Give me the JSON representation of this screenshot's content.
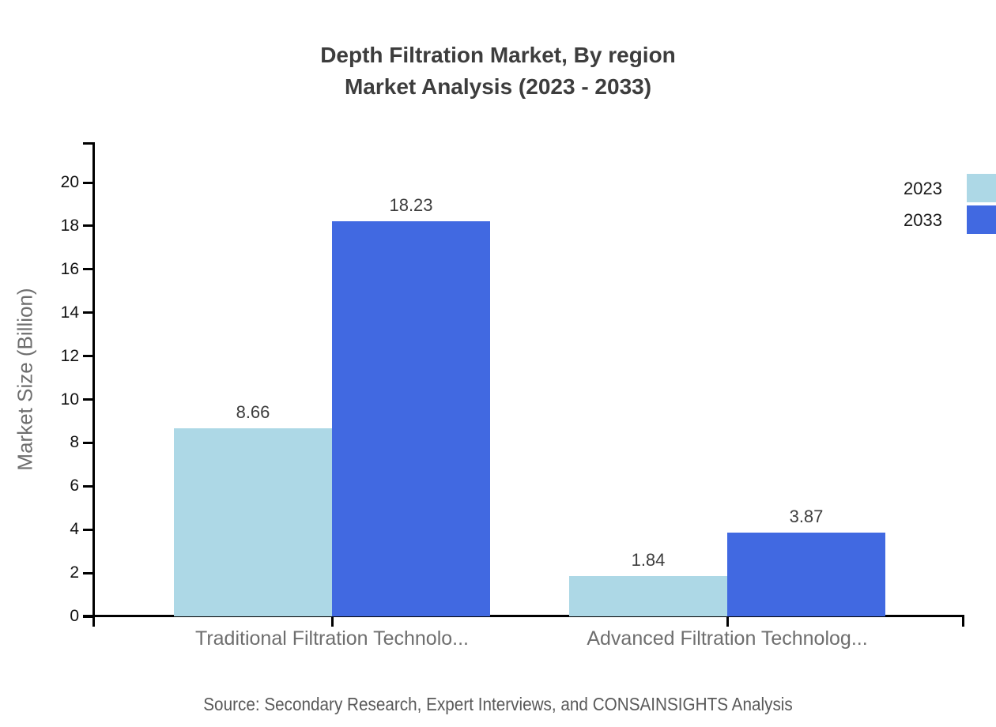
{
  "chart_data": {
    "type": "bar",
    "title": "Depth Filtration Market, By region",
    "subtitle": "Market Analysis (2023 - 2033)",
    "categories": [
      "Traditional Filtration Technolo...",
      "Advanced Filtration Technolog..."
    ],
    "series": [
      {
        "name": "2023",
        "color": "#ADD8E6",
        "values": [
          8.66,
          1.84
        ]
      },
      {
        "name": "2033",
        "color": "#4169E1",
        "values": [
          18.23,
          3.87
        ]
      }
    ],
    "xlabel": "",
    "ylabel": "Market Size (Billion)",
    "ylim": [
      0,
      20
    ],
    "yticks": [
      0,
      2,
      4,
      6,
      8,
      10,
      12,
      14,
      16,
      18,
      20
    ],
    "grid": false,
    "legend_position": "top-right",
    "value_labels": true,
    "axis_color": "#000000",
    "source_note": "Source: Secondary Research, Expert Interviews, and CONSAINSIGHTS Analysis"
  }
}
